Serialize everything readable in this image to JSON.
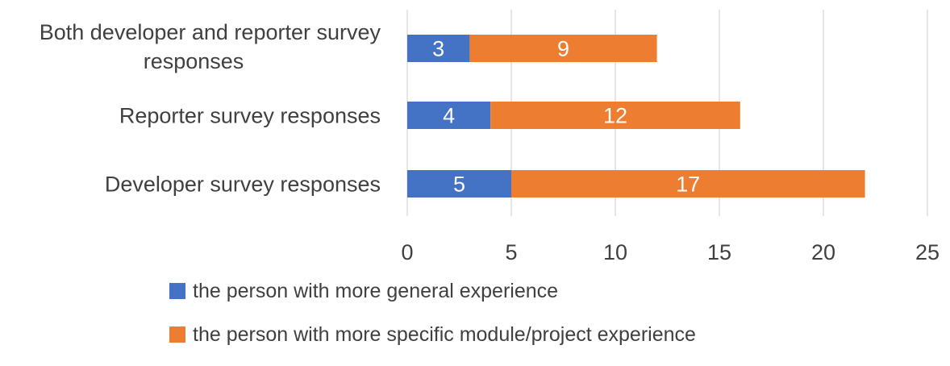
{
  "chart_data": {
    "type": "bar",
    "orientation": "horizontal",
    "stacked": true,
    "categories": [
      "Both developer and reporter survey responses",
      "Reporter survey responses",
      "Developer survey responses"
    ],
    "category_label_lines": [
      [
        "Both developer and reporter survey",
        "responses"
      ],
      [
        "Reporter survey responses"
      ],
      [
        "Developer survey responses"
      ]
    ],
    "series": [
      {
        "name": "the person with more general experience",
        "color": "#4472C4",
        "values": [
          3,
          4,
          5
        ]
      },
      {
        "name": "the person with more specific module/project experience",
        "color": "#ED7D31",
        "values": [
          9,
          12,
          17
        ]
      }
    ],
    "xlim": [
      0,
      25
    ],
    "x_ticks": [
      "0",
      "5",
      "10",
      "15",
      "20",
      "25"
    ],
    "data_labels": true,
    "grid": true,
    "legend_position": "bottom"
  }
}
